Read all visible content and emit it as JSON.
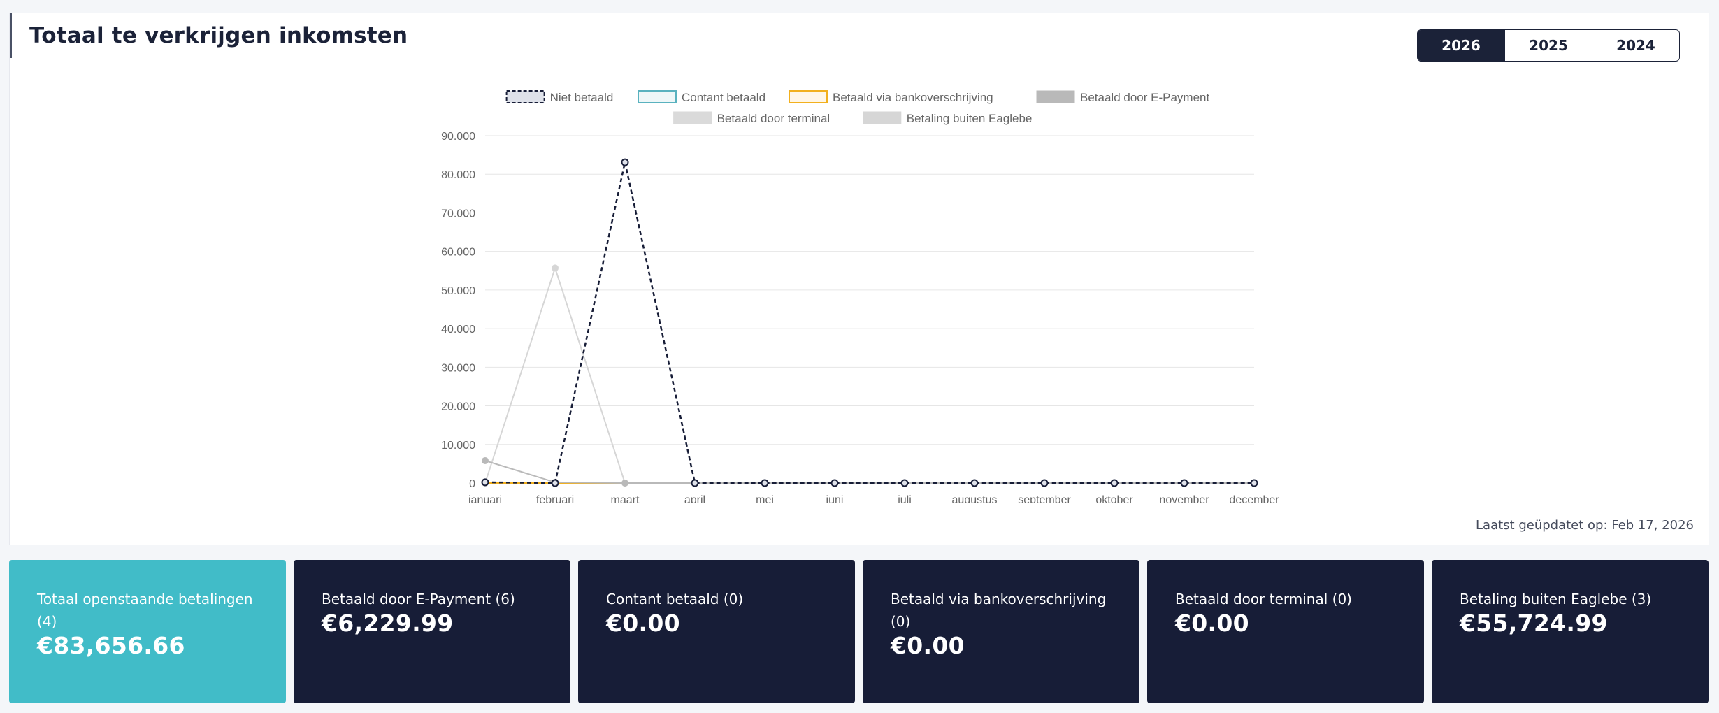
{
  "header": {
    "title": "Totaal te verkrijgen inkomsten",
    "years": [
      "2026",
      "2025",
      "2024"
    ],
    "active_year": "2026"
  },
  "footer": {
    "last_updated": "Laatst geüpdatet op: Feb 17, 2026"
  },
  "chart_data": {
    "type": "line",
    "categories": [
      "januari",
      "februari",
      "maart",
      "april",
      "mei",
      "juni",
      "juli",
      "augustus",
      "september",
      "oktober",
      "november",
      "december"
    ],
    "ylim": [
      0,
      90000
    ],
    "yticks": [
      0,
      10000,
      20000,
      30000,
      40000,
      50000,
      60000,
      70000,
      80000,
      90000
    ],
    "ytick_labels": [
      "0",
      "10.000",
      "20.000",
      "30.000",
      "40.000",
      "50.000",
      "60.000",
      "70.000",
      "80.000",
      "90.000"
    ],
    "grid": true,
    "legend_position": "top",
    "series": [
      {
        "name": "Niet betaald",
        "color": "#171d37",
        "dashed": true,
        "show_points": true,
        "values": [
          200,
          0,
          83100,
          0,
          0,
          0,
          0,
          0,
          0,
          0,
          0,
          0
        ]
      },
      {
        "name": "Contant betaald",
        "color": "#5ab2bf",
        "dashed": false,
        "show_points": false,
        "values": [
          0,
          0,
          0,
          0,
          0,
          0,
          0,
          0,
          0,
          0,
          0,
          0
        ]
      },
      {
        "name": "Betaald via bankoverschrijving",
        "color": "#f2b01e",
        "dashed": false,
        "show_points": false,
        "values": [
          0,
          0,
          0,
          0,
          0,
          0,
          0,
          0,
          0,
          0,
          0,
          0
        ]
      },
      {
        "name": "Betaald door E-Payment",
        "color": "#b9b9b9",
        "dashed": false,
        "show_points": true,
        "values": [
          5800,
          200,
          0,
          0,
          0,
          0,
          0,
          0,
          0,
          0,
          0,
          0
        ]
      },
      {
        "name": "Betaald door terminal",
        "color": "#dadada",
        "dashed": false,
        "show_points": false,
        "values": [
          0,
          0,
          0,
          0,
          0,
          0,
          0,
          0,
          0,
          0,
          0,
          0
        ]
      },
      {
        "name": "Betaling buiten Eaglebe",
        "color": "#d6d6d6",
        "dashed": false,
        "show_points": true,
        "values": [
          0,
          55700,
          0,
          0,
          0,
          0,
          0,
          0,
          0,
          0,
          0,
          0
        ]
      }
    ]
  },
  "cards": [
    {
      "label": "Totaal openstaande betalingen (4)",
      "value": "€83,656.66",
      "highlight": true
    },
    {
      "label": "Betaald door E-Payment (6)",
      "value": "€6,229.99",
      "highlight": false
    },
    {
      "label": "Contant betaald (0)",
      "value": "€0.00",
      "highlight": false
    },
    {
      "label": "Betaald via bankoverschrijving (0)",
      "value": "€0.00",
      "highlight": false
    },
    {
      "label": "Betaald door terminal (0)",
      "value": "€0.00",
      "highlight": false
    },
    {
      "label": "Betaling buiten Eaglebe (3)",
      "value": "€55,724.99",
      "highlight": false
    }
  ]
}
